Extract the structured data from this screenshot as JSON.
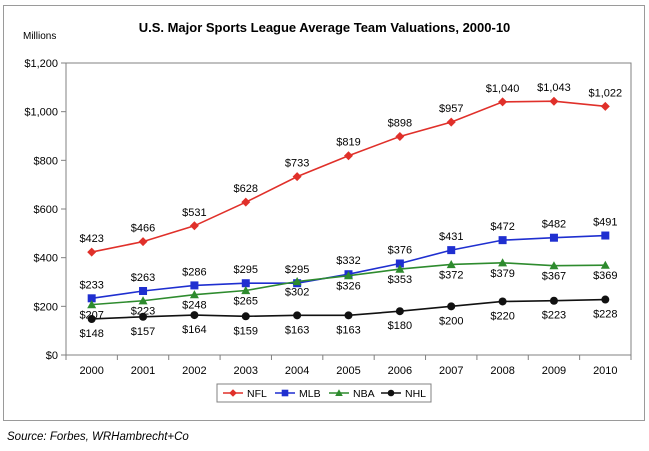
{
  "chart_data": {
    "type": "line",
    "title": "U.S. Major Sports League Average Team Valuations, 2000-10",
    "units_label": "Millions",
    "source": "Source: Forbes, WRHambrecht+Co",
    "categories": [
      "2000",
      "2001",
      "2002",
      "2003",
      "2004",
      "2005",
      "2006",
      "2007",
      "2008",
      "2009",
      "2010"
    ],
    "ylim": [
      0,
      1200
    ],
    "yticks": [
      0,
      200,
      400,
      600,
      800,
      1000,
      1200
    ],
    "ytick_labels": [
      "$0",
      "$200",
      "$400",
      "$600",
      "$800",
      "$1,000",
      "$1,200"
    ],
    "grid": false,
    "legend_position": "bottom",
    "series": [
      {
        "name": "NFL",
        "color": "#e0302a",
        "marker": "diamond",
        "values": [
          423,
          466,
          531,
          628,
          733,
          819,
          898,
          957,
          1040,
          1043,
          1022
        ],
        "labels": [
          "$423",
          "$466",
          "$531",
          "$628",
          "$733",
          "$819",
          "$898",
          "$957",
          "$1,040",
          "$1,043",
          "$1,022"
        ]
      },
      {
        "name": "MLB",
        "color": "#1f2fd0",
        "marker": "square",
        "values": [
          233,
          263,
          286,
          295,
          295,
          332,
          376,
          431,
          472,
          482,
          491
        ],
        "labels": [
          "$233",
          "$263",
          "$286",
          "$295",
          "$295",
          "$332",
          "$376",
          "$431",
          "$472",
          "$482",
          "$491"
        ]
      },
      {
        "name": "NBA",
        "color": "#2e8b2e",
        "marker": "triangle",
        "values": [
          207,
          223,
          248,
          265,
          302,
          326,
          353,
          372,
          379,
          367,
          369
        ],
        "labels": [
          "$207",
          "$223",
          "$248",
          "$265",
          "$302",
          "$326",
          "$353",
          "$372",
          "$379",
          "$367",
          "$369"
        ]
      },
      {
        "name": "NHL",
        "color": "#111111",
        "marker": "circle",
        "values": [
          148,
          157,
          164,
          159,
          163,
          163,
          180,
          200,
          220,
          223,
          228
        ],
        "labels": [
          "$148",
          "$157",
          "$164",
          "$159",
          "$163",
          "$163",
          "$180",
          "$200",
          "$220",
          "$223",
          "$228"
        ]
      }
    ]
  }
}
